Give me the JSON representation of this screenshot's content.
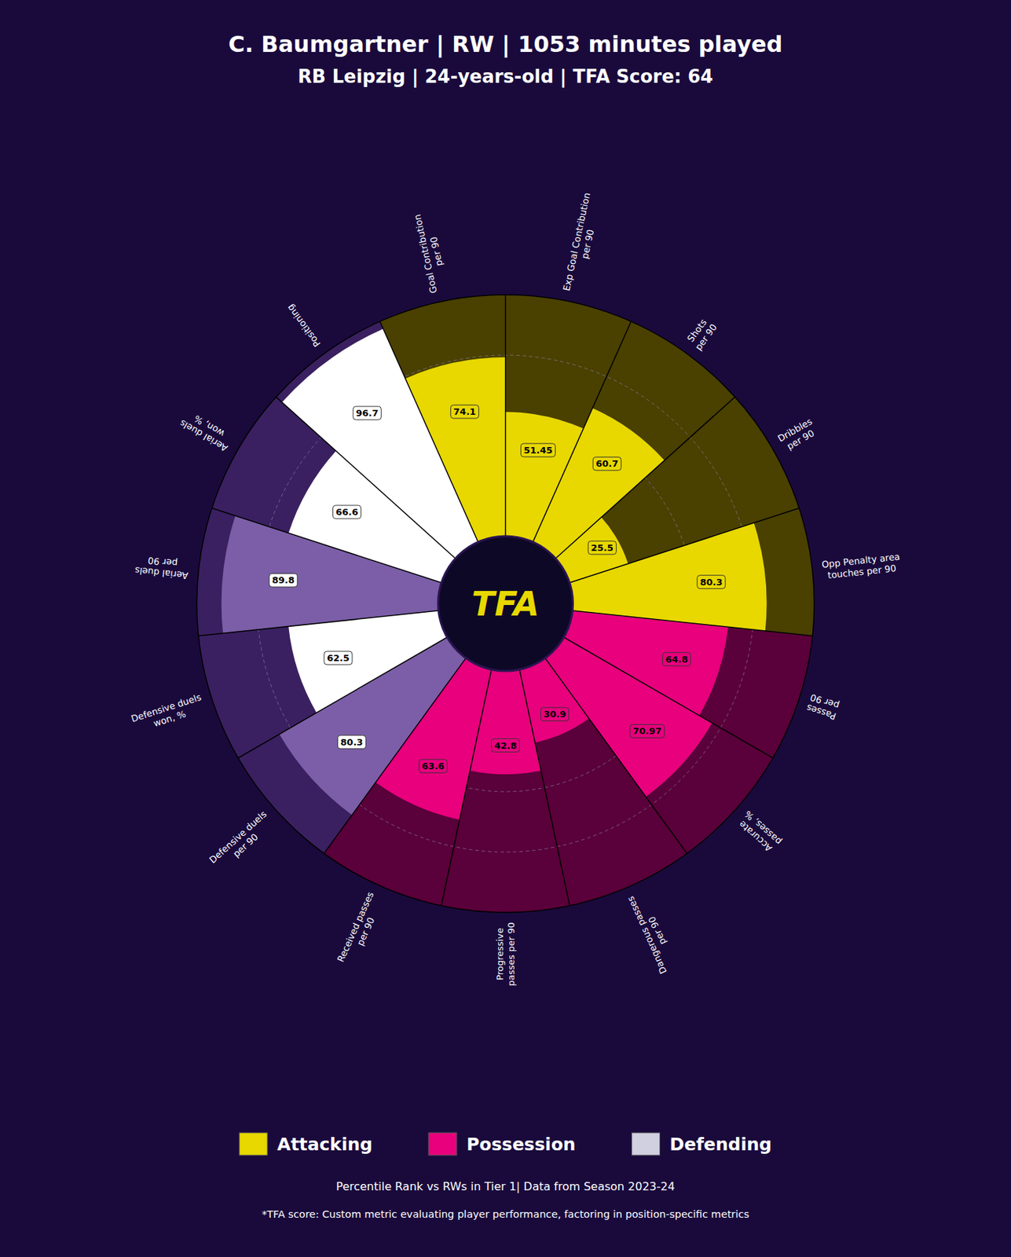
{
  "chart_data": {
    "type": "polar_bar",
    "title": "C. Baumgartner | RW | 1053 minutes played",
    "subtitle": "RB Leipzig | 24-years-old | TFA Score: 64",
    "categories": [
      "Goal Contribution\nper 90",
      "Exp Goal Contribution\nper 90",
      "Shots\nper 90",
      "Dribbles\nper 90",
      "Opp Penalty area\ntouches per 90",
      "Passes\nper 90",
      "Accurate\npasses, %",
      "Dangerous passes\nper 90",
      "Progressive\npasses per 90",
      "Received passes\nper 90",
      "Defensive duels\nper 90",
      "Defensive duels\nwon, %",
      "Aerial duels\nper 90",
      "Aerial duels\nwon, %",
      "Positioning"
    ],
    "values": [
      74.1,
      51.45,
      60.7,
      25.5,
      80.3,
      64.8,
      70.97,
      30.9,
      42.8,
      63.6,
      80.3,
      62.5,
      89.8,
      66.6,
      96.7
    ],
    "colors": [
      "#e8d800",
      "#e8d800",
      "#e8d800",
      "#e8d800",
      "#e8d800",
      "#e8007d",
      "#e8007d",
      "#e8007d",
      "#e8007d",
      "#e8007d",
      "#7b5ea7",
      "#ffffff",
      "#7b5ea7",
      "#ffffff",
      "#ffffff"
    ],
    "background_colors": [
      "#4a4000",
      "#4a4000",
      "#4a4000",
      "#4a4000",
      "#4a4000",
      "#5a003a",
      "#5a003a",
      "#5a003a",
      "#5a003a",
      "#5a003a",
      "#3a2060",
      "#3a2060",
      "#3a2060",
      "#3a2060",
      "#3a2060"
    ],
    "label_box_colors": [
      "#e8d800",
      "#e8d800",
      "#e8d800",
      "#e8d800",
      "#e8d800",
      "#e8007d",
      "#e8007d",
      "#e8007d",
      "#e8007d",
      "#e8007d",
      "#ffffff",
      "#ffffff",
      "#ffffff",
      "#ffffff",
      "#ffffff"
    ],
    "label_text_colors": [
      "#000000",
      "#000000",
      "#000000",
      "#000000",
      "#000000",
      "#000000",
      "#000000",
      "#000000",
      "#000000",
      "#000000",
      "#000000",
      "#000000",
      "#000000",
      "#000000",
      "#000000"
    ],
    "ylim": [
      0,
      100
    ],
    "yticks": [
      0,
      25,
      50,
      75,
      100
    ],
    "grid": true,
    "grid_color": "#9090b0",
    "tick_labels": false,
    "data_labels": true,
    "center_label": "TFA",
    "center_label_color": "#e8d800",
    "center_background": "#0d0826",
    "background": "#1a0a3c",
    "legend_entries": [
      {
        "name": "Attacking",
        "color": "#e8d800"
      },
      {
        "name": "Possession",
        "color": "#e8007d"
      },
      {
        "name": "Defending",
        "color": "#d0d0e0"
      }
    ],
    "notes": [
      "Percentile Rank vs RWs in Tier 1| Data from Season 2023-24",
      "*TFA score: Custom metric evaluating player performance, factoring in position-specific metrics"
    ]
  }
}
